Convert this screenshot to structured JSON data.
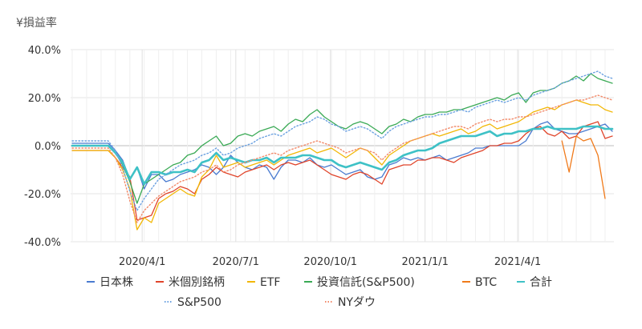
{
  "chart_data": {
    "type": "line",
    "title": "",
    "ylabel": "¥損益率",
    "xlabel": "",
    "ylim": [
      -40,
      40
    ],
    "y_ticks": [
      "40.0%",
      "20.0%",
      "0.0%",
      "-20.0%",
      "-40.0%"
    ],
    "x_ticks": [
      "2020/4/1",
      "2020/7/1",
      "2020/10/1",
      "2021/1/1",
      "2021/4/1"
    ],
    "grid": true,
    "legend_position": "bottom",
    "x_start": "2020-01-24",
    "x_step_days": 7,
    "series": [
      {
        "name": "日本株",
        "color": "#4a7bd0",
        "style": "solid",
        "values": [
          1,
          1,
          1,
          1,
          1,
          1,
          -2,
          -6,
          -14,
          -9,
          -18,
          -12,
          -12,
          -15,
          -14,
          -12,
          -11,
          -10,
          -8,
          -9,
          -12,
          -9,
          -4,
          -7,
          -9,
          -10,
          -8,
          -9,
          -14,
          -9,
          -6,
          -6,
          -7,
          -5,
          -8,
          -9,
          -8,
          -10,
          -12,
          -11,
          -10,
          -13,
          -14,
          -13,
          -8,
          -7,
          -5,
          -6,
          -5,
          -6,
          -5,
          -4,
          -6,
          -5,
          -4,
          -3,
          -1,
          -1,
          0,
          0,
          0,
          0,
          0,
          2,
          7,
          9,
          10,
          7,
          6,
          5,
          5,
          6,
          7,
          8,
          9,
          6
        ]
      },
      {
        "name": "米個別銘柄",
        "color": "#e0442a",
        "style": "solid",
        "values": [
          -2,
          -2,
          -2,
          -2,
          -2,
          -2,
          -5,
          -9,
          -13,
          -31,
          -30,
          -29,
          -22,
          -20,
          -19,
          -17,
          -18,
          -20,
          -14,
          -12,
          -9,
          -11,
          -12,
          -13,
          -11,
          -10,
          -9,
          -8,
          -10,
          -8,
          -7,
          -8,
          -7,
          -6,
          -8,
          -10,
          -12,
          -13,
          -14,
          -12,
          -11,
          -12,
          -14,
          -16,
          -10,
          -9,
          -8,
          -8,
          -6,
          -6,
          -5,
          -5,
          -6,
          -7,
          -5,
          -4,
          -3,
          -2,
          0,
          0,
          1,
          1,
          2,
          5,
          7,
          8,
          5,
          4,
          6,
          3,
          4,
          8,
          9,
          10,
          3,
          4
        ]
      },
      {
        "name": "ETF",
        "color": "#f2b705",
        "style": "solid",
        "values": [
          -2,
          -2,
          -2,
          -2,
          -2,
          -2,
          -5,
          -10,
          -18,
          -35,
          -30,
          -32,
          -24,
          -22,
          -20,
          -18,
          -20,
          -21,
          -13,
          -10,
          -4,
          -9,
          -8,
          -7,
          -9,
          -8,
          -7,
          -6,
          -8,
          -6,
          -4,
          -3,
          -2,
          -1,
          -3,
          -2,
          -1,
          -3,
          -5,
          -3,
          -1,
          -2,
          -5,
          -8,
          -4,
          -2,
          0,
          2,
          3,
          4,
          5,
          4,
          5,
          6,
          7,
          5,
          6,
          8,
          9,
          7,
          8,
          9,
          10,
          12,
          14,
          15,
          16,
          15,
          17,
          18,
          19,
          18,
          17,
          17,
          15,
          14
        ]
      },
      {
        "name": "投資信託(S&P500)",
        "color": "#3aaa55",
        "style": "solid",
        "values": [
          0,
          0,
          0,
          0,
          0,
          0,
          -3,
          -8,
          -15,
          -24,
          -16,
          -14,
          -12,
          -10,
          -8,
          -7,
          -4,
          -3,
          0,
          2,
          4,
          0,
          1,
          4,
          5,
          4,
          6,
          7,
          8,
          6,
          9,
          11,
          10,
          13,
          15,
          12,
          10,
          8,
          7,
          9,
          10,
          9,
          7,
          5,
          8,
          9,
          11,
          10,
          12,
          13,
          13,
          14,
          14,
          15,
          15,
          16,
          17,
          18,
          19,
          20,
          19,
          21,
          22,
          18,
          22,
          23,
          23,
          24,
          26,
          27,
          29,
          27,
          30,
          28,
          27,
          26
        ]
      },
      {
        "name": "BTC",
        "color": "#f07a1a",
        "style": "solid",
        "values": [
          null,
          null,
          null,
          null,
          null,
          null,
          null,
          null,
          null,
          null,
          null,
          null,
          null,
          null,
          null,
          null,
          null,
          null,
          null,
          null,
          null,
          null,
          null,
          null,
          null,
          null,
          null,
          null,
          null,
          null,
          null,
          null,
          null,
          null,
          null,
          null,
          null,
          null,
          null,
          null,
          null,
          null,
          null,
          null,
          null,
          null,
          null,
          null,
          null,
          null,
          null,
          null,
          null,
          null,
          null,
          null,
          null,
          null,
          null,
          null,
          null,
          null,
          null,
          null,
          null,
          null,
          null,
          null,
          2,
          -11,
          4,
          2,
          3,
          -4,
          -22,
          null
        ]
      },
      {
        "name": "合計",
        "color": "#3ec1c6",
        "style": "solid",
        "values": [
          0,
          0,
          0,
          0,
          0,
          0,
          -3,
          -7,
          -14,
          -9,
          -16,
          -11,
          -11,
          -12,
          -11,
          -11,
          -10,
          -11,
          -7,
          -6,
          -3,
          -6,
          -5,
          -6,
          -7,
          -6,
          -6,
          -5,
          -7,
          -5,
          -5,
          -5,
          -4,
          -4,
          -5,
          -6,
          -6,
          -8,
          -9,
          -8,
          -7,
          -8,
          -9,
          -10,
          -7,
          -6,
          -4,
          -3,
          -2,
          -2,
          -1,
          1,
          2,
          3,
          4,
          4,
          4,
          5,
          6,
          4,
          5,
          5,
          6,
          6,
          7,
          7,
          8,
          7,
          7,
          7,
          7,
          8,
          8,
          8,
          7,
          7
        ]
      },
      {
        "name": "S&P500",
        "color": "#6aa0e0",
        "style": "dotted",
        "values": [
          2,
          2,
          2,
          2,
          2,
          2,
          -2,
          -9,
          -19,
          -27,
          -22,
          -18,
          -14,
          -12,
          -10,
          -8,
          -7,
          -6,
          -4,
          -3,
          -1,
          -4,
          -3,
          -1,
          0,
          1,
          3,
          4,
          5,
          4,
          6,
          8,
          9,
          10,
          12,
          11,
          9,
          8,
          6,
          7,
          8,
          7,
          5,
          3,
          6,
          8,
          9,
          10,
          11,
          12,
          12,
          13,
          13,
          14,
          15,
          14,
          16,
          17,
          18,
          19,
          18,
          19,
          20,
          19,
          21,
          22,
          23,
          24,
          26,
          27,
          28,
          29,
          30,
          31,
          29,
          28
        ]
      },
      {
        "name": "NYダウ",
        "color": "#f28a6a",
        "style": "dotted",
        "values": [
          -1,
          -1,
          -1,
          -1,
          -1,
          -1,
          -5,
          -12,
          -23,
          -32,
          -27,
          -24,
          -21,
          -19,
          -17,
          -15,
          -14,
          -13,
          -11,
          -10,
          -8,
          -11,
          -10,
          -8,
          -7,
          -6,
          -5,
          -4,
          -3,
          -4,
          -2,
          -1,
          0,
          1,
          2,
          1,
          0,
          -1,
          -3,
          -2,
          -1,
          -2,
          -3,
          -6,
          -3,
          -1,
          1,
          2,
          3,
          4,
          5,
          6,
          7,
          8,
          8,
          7,
          9,
          10,
          11,
          10,
          11,
          11,
          12,
          12,
          13,
          14,
          15,
          16,
          17,
          18,
          19,
          19,
          20,
          21,
          20,
          19
        ]
      }
    ]
  }
}
